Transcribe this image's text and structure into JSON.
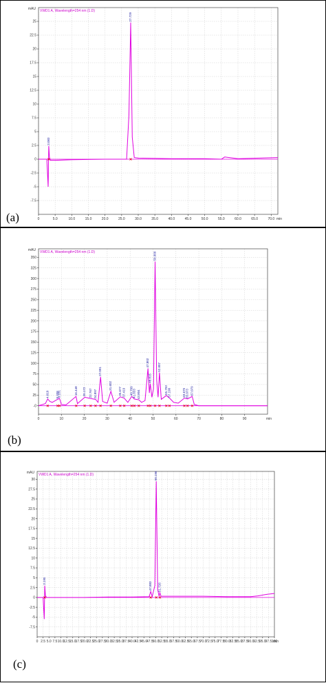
{
  "panels": [
    {
      "letter": "(a)",
      "y_unit": "mAU",
      "legend": "VWD1 A, Wavelength=254 nm (1.D)",
      "x_unit": "min",
      "xlim": [
        0,
        72
      ],
      "ylim": [
        -10,
        27.5
      ],
      "x_ticks": [
        "0",
        "5.0",
        "10.0",
        "15.0",
        "20.0",
        "25.0",
        "30.0",
        "35.0",
        "40.0",
        "45.0",
        "50.0",
        "55.0",
        "60.0",
        "65.0",
        "70.0"
      ],
      "x_tick_values": [
        0,
        5,
        10,
        15,
        20,
        25,
        30,
        35,
        40,
        45,
        50,
        55,
        60,
        65,
        70
      ],
      "y_ticks": [
        "-7.5",
        "-5",
        "-2.5",
        "0",
        "2.5",
        "5",
        "7.5",
        "10",
        "12.5",
        "15",
        "17.5",
        "20",
        "22.5",
        "25"
      ],
      "y_tick_values": [
        -7.5,
        -5,
        -2.5,
        0,
        2.5,
        5,
        7.5,
        10,
        12.5,
        15,
        17.5,
        20,
        22.5,
        25
      ],
      "peak_labels": [
        {
          "text": "3.083",
          "x": 3.08,
          "y": 2.4
        },
        {
          "text": "27.729",
          "x": 27.73,
          "y": 24.8
        }
      ]
    },
    {
      "letter": "(b)",
      "y_unit": "mAU",
      "legend": "VWD1 A, Wavelength=254 nm (1.D)",
      "x_unit": "min",
      "xlim": [
        0,
        100
      ],
      "ylim": [
        -20,
        370
      ],
      "x_ticks": [
        "0",
        "10",
        "20",
        "30",
        "40",
        "50",
        "60",
        "70",
        "80",
        "90"
      ],
      "x_tick_values": [
        0,
        10,
        20,
        30,
        40,
        50,
        60,
        70,
        80,
        90
      ],
      "y_ticks": [
        "-0",
        "25",
        "50",
        "75",
        "100",
        "125",
        "150",
        "175",
        "200",
        "225",
        "250",
        "275",
        "300",
        "325",
        "350"
      ],
      "y_tick_values": [
        0,
        25,
        50,
        75,
        100,
        125,
        150,
        175,
        200,
        225,
        250,
        275,
        300,
        325,
        350
      ],
      "peak_labels": [
        {
          "text": "50.909",
          "x": 50.91,
          "y": 340
        },
        {
          "text": "27.091",
          "x": 27.09,
          "y": 68
        },
        {
          "text": "47.802",
          "x": 47.8,
          "y": 88
        },
        {
          "text": "52.807",
          "x": 52.81,
          "y": 78
        },
        {
          "text": "48.815",
          "x": 48.82,
          "y": 52
        },
        {
          "text": "16.448",
          "x": 16.45,
          "y": 22
        },
        {
          "text": "20.172",
          "x": 20.17,
          "y": 20
        },
        {
          "text": "22.767",
          "x": 22.77,
          "y": 17
        },
        {
          "text": "24.897",
          "x": 24.9,
          "y": 15
        },
        {
          "text": "31.602",
          "x": 31.6,
          "y": 34
        },
        {
          "text": "35.677",
          "x": 35.68,
          "y": 21
        },
        {
          "text": "37.419",
          "x": 37.42,
          "y": 18
        },
        {
          "text": "40.709",
          "x": 40.71,
          "y": 22
        },
        {
          "text": "41.833",
          "x": 41.83,
          "y": 16
        },
        {
          "text": "43.804",
          "x": 43.8,
          "y": 14
        },
        {
          "text": "55.793",
          "x": 55.79,
          "y": 24
        },
        {
          "text": "57.190",
          "x": 57.19,
          "y": 18
        },
        {
          "text": "63.675",
          "x": 63.68,
          "y": 18
        },
        {
          "text": "65.073",
          "x": 65.07,
          "y": 16
        },
        {
          "text": "67.079",
          "x": 67.08,
          "y": 22
        },
        {
          "text": "8.338",
          "x": 8.34,
          "y": 15
        },
        {
          "text": "9.181",
          "x": 9.18,
          "y": 17
        },
        {
          "text": "4.010",
          "x": 4.01,
          "y": 16
        }
      ]
    },
    {
      "letter": "(c)",
      "y_unit": "mAU",
      "legend": "VWD1 A, Wavelength=254 nm (1.D)",
      "x_unit": "min",
      "xlim": [
        0,
        100
      ],
      "ylim": [
        -10,
        32
      ],
      "x_ticks": [
        "0",
        "2.5",
        "5.0",
        "7.5",
        "10.0",
        "12.5",
        "15.0",
        "17.5",
        "20.0",
        "22.5",
        "25.0",
        "27.5",
        "30.0",
        "32.5",
        "35.0",
        "37.5",
        "40.0",
        "42.5",
        "45.0",
        "47.5",
        "50.0",
        "52.5",
        "55.0",
        "57.5",
        "60.0",
        "62.5",
        "65.0",
        "67.5",
        "70.0",
        "72.5",
        "75.0",
        "77.5",
        "80.0",
        "82.5",
        "85.0",
        "87.5",
        "90.0",
        "92.5",
        "95.0",
        "97.5",
        "100"
      ],
      "x_tick_values": [
        0,
        2.5,
        5,
        7.5,
        10,
        12.5,
        15,
        17.5,
        20,
        22.5,
        25,
        27.5,
        30,
        32.5,
        35,
        37.5,
        40,
        42.5,
        45,
        47.5,
        50,
        52.5,
        55,
        57.5,
        60,
        62.5,
        65,
        67.5,
        70,
        72.5,
        75,
        77.5,
        80,
        82.5,
        85,
        87.5,
        90,
        92.5,
        95,
        97.5,
        100
      ],
      "y_ticks": [
        "-7.5",
        "-5",
        "-2.5",
        "0",
        "2.5",
        "5",
        "7.5",
        "10",
        "12.5",
        "15",
        "17.5",
        "20",
        "22.5",
        "25",
        "27.5",
        "30"
      ],
      "y_tick_values": [
        -7.5,
        -5,
        -2.5,
        0,
        2.5,
        5,
        7.5,
        10,
        12.5,
        15,
        17.5,
        20,
        22.5,
        25,
        27.5,
        30
      ],
      "peak_labels": [
        {
          "text": "3.195",
          "x": 3.2,
          "y": 3.0
        },
        {
          "text": "47.883",
          "x": 47.88,
          "y": 1.5
        },
        {
          "text": "50.196",
          "x": 50.2,
          "y": 29.5
        },
        {
          "text": "51.726",
          "x": 51.73,
          "y": 1.2
        }
      ]
    }
  ],
  "chart_data": [
    {
      "type": "line",
      "series": [
        {
          "x": [
            0,
            2.5,
            2.9,
            3.08,
            3.3,
            3.6,
            5,
            10,
            20,
            26.5,
            27.2,
            27.73,
            28.2,
            28.8,
            30,
            40,
            50,
            55,
            56,
            60,
            72
          ],
          "y": [
            0,
            0,
            -5.0,
            2.4,
            0.3,
            -0.2,
            -0.2,
            -0.1,
            0,
            0,
            8,
            24.8,
            4,
            0.3,
            0.2,
            0.1,
            0.1,
            0,
            0.4,
            0.1,
            0.3
          ]
        }
      ],
      "xlim": [
        0,
        72
      ],
      "ylim": [
        -10,
        27.5
      ]
    },
    {
      "type": "line",
      "series": [
        {
          "x": [
            0,
            3,
            4,
            5,
            6,
            8.3,
            9.2,
            10,
            12,
            16.4,
            17,
            20.2,
            22.8,
            24.9,
            26,
            27.1,
            28,
            30,
            31.6,
            33,
            35.7,
            37.4,
            39,
            40.7,
            41.8,
            43.8,
            45,
            46.5,
            47.8,
            48.4,
            48.8,
            49.5,
            50.2,
            50.9,
            51.6,
            52.2,
            52.8,
            53.6,
            55.8,
            57.2,
            59,
            61,
            63.7,
            65.1,
            67.1,
            68,
            70,
            100
          ],
          "y": [
            0,
            5,
            16,
            10,
            8,
            15,
            17,
            3,
            2,
            22,
            5,
            20,
            17,
            15,
            8,
            68,
            10,
            6,
            34,
            8,
            21,
            18,
            8,
            22,
            16,
            14,
            8,
            12,
            88,
            30,
            52,
            20,
            40,
            340,
            60,
            20,
            78,
            15,
            24,
            18,
            8,
            6,
            18,
            16,
            22,
            3,
            0,
            0
          ]
        }
      ],
      "xlim": [
        0,
        100
      ],
      "ylim": [
        -20,
        370
      ]
    },
    {
      "type": "line",
      "series": [
        {
          "x": [
            0,
            2.5,
            3.0,
            3.2,
            3.5,
            4,
            10,
            20,
            30,
            40,
            47.2,
            47.88,
            48.5,
            49.6,
            50.2,
            50.8,
            51.4,
            51.73,
            52.2,
            60,
            70,
            80,
            90,
            93,
            97,
            100
          ],
          "y": [
            0,
            0,
            -5.5,
            3.0,
            0.4,
            0,
            0,
            0,
            0.1,
            0.1,
            0.2,
            1.5,
            0.2,
            3,
            29.5,
            2,
            0.3,
            1.2,
            0.3,
            0.3,
            0.3,
            0.2,
            0.2,
            0.4,
            0.8,
            1.0
          ]
        }
      ],
      "xlim": [
        0,
        100
      ],
      "ylim": [
        -10,
        32
      ]
    }
  ]
}
